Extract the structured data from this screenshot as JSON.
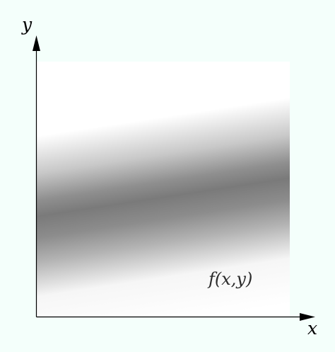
{
  "axes": {
    "x_label": "x",
    "y_label": "y"
  },
  "function_label": "f(x,y)",
  "colors": {
    "background": "#f4fffb",
    "axis": "#000000",
    "band_edge": "#ffffff",
    "band_center": "#7a7a7a"
  }
}
